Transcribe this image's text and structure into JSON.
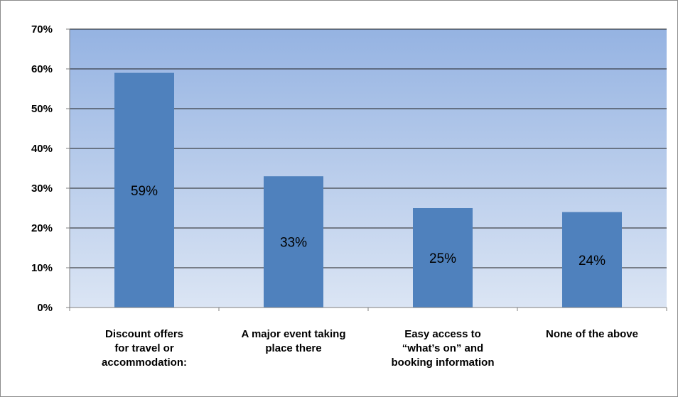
{
  "chart_data": {
    "type": "bar",
    "title": "",
    "xlabel": "",
    "ylabel": "",
    "categories": [
      [
        "Discount offers",
        "for travel or",
        "accommodation:"
      ],
      [
        "A major event taking",
        "place there"
      ],
      [
        "Easy access to",
        "“what’s on” and",
        "booking information"
      ],
      [
        "None of the above"
      ]
    ],
    "values": [
      59,
      33,
      25,
      24
    ],
    "data_labels": [
      "59%",
      "33%",
      "25%",
      "24%"
    ],
    "yticks": [
      "0%",
      "10%",
      "20%",
      "30%",
      "40%",
      "50%",
      "60%",
      "70%"
    ],
    "ylim": [
      0,
      70
    ],
    "grid": true,
    "legend": "none",
    "colors": {
      "bar": "#4f81bd",
      "plot_bg_top": "#95b3e2",
      "plot_bg_bottom": "#dbe5f4",
      "gridline": "#1f1f1f"
    }
  }
}
